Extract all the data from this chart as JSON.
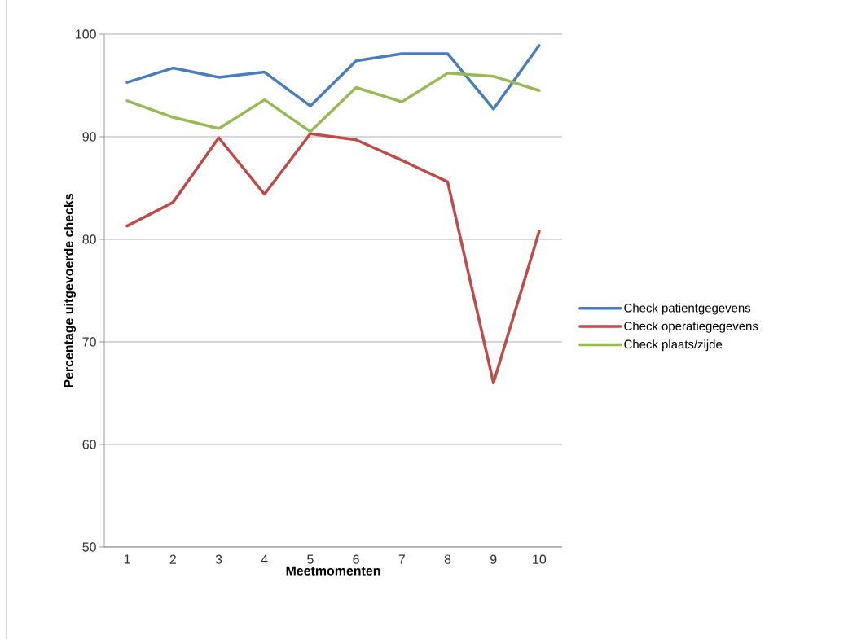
{
  "chart_data": {
    "type": "line",
    "xlabel": "Meetmomenten",
    "ylabel": "Percentage uitgevoerde checks",
    "categories": [
      "1",
      "2",
      "3",
      "4",
      "5",
      "6",
      "7",
      "8",
      "9",
      "10"
    ],
    "series": [
      {
        "name": "Check patientgegevens",
        "color": "#4a7ebb",
        "values": [
          95.3,
          96.7,
          95.8,
          96.3,
          93.0,
          97.4,
          98.1,
          98.1,
          92.7,
          98.9
        ]
      },
      {
        "name": "Check operatiegegevens",
        "color": "#be4b48",
        "values": [
          81.3,
          83.6,
          89.9,
          84.4,
          90.3,
          89.7,
          87.7,
          85.6,
          66.0,
          80.8
        ]
      },
      {
        "name": "Check plaats/zijde",
        "color": "#98b954",
        "values": [
          93.5,
          91.9,
          90.8,
          93.6,
          90.5,
          94.8,
          93.4,
          96.2,
          95.9,
          94.5
        ]
      }
    ],
    "ylim": [
      50,
      100
    ],
    "yticks": [
      50,
      60,
      70,
      80,
      90,
      100
    ],
    "grid": "y",
    "legend": "right",
    "marker": "none",
    "line_style": "solid"
  }
}
